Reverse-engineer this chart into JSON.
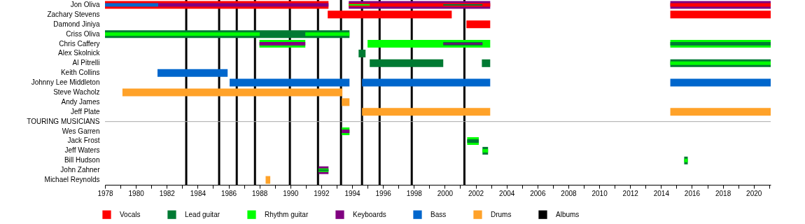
{
  "chart_data": {
    "type": "bar",
    "orientation": "horizontal",
    "legend": "bottom",
    "grid": false,
    "categories": [
      "Jon Oliva",
      "Zachary Stevens",
      "Damond Jiniya",
      "Criss Oliva",
      "Chris Caffery",
      "Alex Skolnick",
      "Al Pitrelli",
      "Keith Collins",
      "Johnny Lee Middleton",
      "Steve Wacholz",
      "Andy James",
      "Jeff Plate",
      "TOURING MUSICIANS",
      "Wes Garren",
      "Jack Frost",
      "Jeff Waters",
      "Bill Hudson",
      "John Zahner",
      "Michael Reynolds"
    ],
    "xlim": [
      1978,
      2021.1
    ],
    "xticks": [
      1978,
      {
        "value": 1979,
        "label": null
      },
      1980,
      {
        "value": 1981,
        "label": null
      },
      1982,
      {
        "value": 1983,
        "label": null
      },
      1984,
      {
        "value": 1985,
        "label": null
      },
      1986,
      {
        "value": 1987,
        "label": null
      },
      1988,
      {
        "value": 1989,
        "label": null
      },
      1990,
      {
        "value": 1991,
        "label": null
      },
      1992,
      {
        "value": 1993,
        "label": null
      },
      1994,
      {
        "value": 1995,
        "label": null
      },
      1996,
      {
        "value": 1997,
        "label": null
      },
      1998,
      {
        "value": 1999,
        "label": null
      },
      2000,
      {
        "value": 2001,
        "label": null
      },
      2002,
      {
        "value": 2003,
        "label": null
      },
      2004,
      {
        "value": 2005,
        "label": null
      },
      2006,
      {
        "value": 2007,
        "label": null
      },
      2008,
      {
        "value": 2009,
        "label": null
      },
      2010,
      {
        "value": 2011,
        "label": null
      },
      2012,
      {
        "value": 2013,
        "label": null
      },
      2014,
      {
        "value": 2015,
        "label": null
      },
      2016,
      {
        "value": 2017,
        "label": null
      },
      2018,
      {
        "value": 2019,
        "label": null
      },
      2020,
      {
        "value": 2021,
        "label": null
      }
    ],
    "series": [
      {
        "name": "Vocals",
        "color": "#ff0000",
        "values": [
          14.47,
          8.03,
          1.54,
          null,
          null,
          null,
          null,
          null,
          null,
          null,
          null,
          null,
          null,
          null,
          null,
          null,
          null,
          null,
          null
        ],
        "base": [
          1978,
          1992.42,
          2001.4,
          null,
          null,
          null,
          null,
          null,
          null,
          null,
          null,
          null,
          null,
          null,
          null,
          null,
          null,
          null,
          null
        ]
      },
      {
        "name": "Lead guitar",
        "color": "#007a33",
        "values": [
          null,
          null,
          null,
          15.83,
          null,
          0.45,
          4.76,
          null,
          null,
          null,
          null,
          null,
          null,
          null,
          null,
          0.36,
          0.23,
          null,
          null
        ],
        "base": [
          null,
          null,
          null,
          1978,
          null,
          1994.42,
          1995.14,
          null,
          null,
          null,
          null,
          null,
          null,
          null,
          null,
          2002.44,
          2015.5,
          null,
          null
        ]
      },
      {
        "name": "Rhythm guitar",
        "color": "#00ff00",
        "values": [
          null,
          null,
          null,
          null,
          2.97,
          null,
          null,
          null,
          null,
          null,
          null,
          null,
          null,
          0.5,
          0.75,
          null,
          null,
          null,
          null
        ],
        "base": [
          null,
          null,
          null,
          null,
          1988.0,
          null,
          null,
          null,
          null,
          null,
          null,
          null,
          null,
          1993.33,
          2001.45,
          null,
          null,
          null,
          null
        ]
      },
      {
        "name": "Keyboards",
        "color": "#800080",
        "values": [
          9.16,
          null,
          null,
          null,
          null,
          null,
          null,
          null,
          null,
          null,
          null,
          null,
          null,
          null,
          null,
          null,
          null,
          0.64,
          null
        ],
        "base": [
          1993.78,
          null,
          null,
          null,
          null,
          null,
          null,
          null,
          null,
          null,
          null,
          null,
          null,
          null,
          null,
          null,
          null,
          1991.83,
          null
        ]
      },
      {
        "name": "Bass",
        "color": "#0066cc",
        "values": [
          null,
          null,
          null,
          null,
          null,
          null,
          null,
          4.54,
          7.76,
          null,
          null,
          null,
          null,
          null,
          null,
          null,
          null,
          null,
          null
        ],
        "base": [
          null,
          null,
          null,
          null,
          null,
          null,
          null,
          1981.4,
          1986.07,
          null,
          null,
          null,
          null,
          null,
          null,
          null,
          null,
          null,
          null
        ]
      },
      {
        "name": "Drums",
        "color": "#ffa229",
        "values": [
          null,
          null,
          null,
          null,
          null,
          null,
          null,
          null,
          null,
          14.24,
          0.5,
          8.3,
          null,
          null,
          null,
          null,
          null,
          null,
          0.3
        ],
        "base": [
          null,
          null,
          null,
          null,
          null,
          null,
          null,
          null,
          null,
          1979.13,
          1993.33,
          1994.64,
          null,
          null,
          null,
          null,
          null,
          null,
          1988.4
        ]
      },
      {
        "color": "#0066cc",
        "values": [
          null,
          null,
          null,
          null,
          null,
          null,
          null,
          null,
          8.3,
          null,
          null,
          null,
          null,
          null,
          null,
          null,
          null,
          null,
          null
        ],
        "base": [
          null,
          null,
          null,
          null,
          null,
          null,
          null,
          null,
          1994.64,
          null,
          null,
          null,
          null,
          null,
          null,
          null,
          null,
          null,
          null
        ]
      },
      {
        "color": "#ffa229",
        "values": [
          null,
          null,
          null,
          null,
          null,
          null,
          null,
          null,
          null,
          null,
          null,
          6.5,
          null,
          null,
          null,
          null,
          null,
          null,
          null
        ],
        "base": [
          null,
          null,
          null,
          null,
          null,
          null,
          null,
          null,
          null,
          null,
          null,
          2014.6,
          null,
          null,
          null,
          null,
          null,
          null,
          null
        ]
      },
      {
        "color": "#0066cc",
        "values": [
          null,
          null,
          null,
          null,
          null,
          null,
          null,
          null,
          6.5,
          null,
          null,
          null,
          null,
          null,
          null,
          null,
          null,
          null,
          null
        ],
        "base": [
          null,
          null,
          null,
          null,
          null,
          null,
          null,
          null,
          2014.6,
          null,
          null,
          null,
          null,
          null,
          null,
          null,
          null,
          null,
          null
        ]
      },
      {
        "color": "#800080",
        "values": [
          6.5,
          null,
          null,
          null,
          null,
          null,
          null,
          null,
          null,
          null,
          null,
          null,
          null,
          null,
          null,
          null,
          null,
          null,
          null
        ],
        "base": [
          2014.6,
          null,
          null,
          null,
          null,
          null,
          null,
          null,
          null,
          null,
          null,
          null,
          null,
          null,
          null,
          null,
          null,
          null,
          null
        ]
      },
      {
        "color": "#ff0000",
        "values": [
          null,
          6.5,
          null,
          null,
          null,
          null,
          null,
          null,
          null,
          null,
          null,
          null,
          null,
          null,
          null,
          null,
          null,
          null,
          null
        ],
        "base": [
          null,
          2014.6,
          null,
          null,
          null,
          null,
          null,
          null,
          null,
          null,
          null,
          null,
          null,
          null,
          null,
          null,
          null,
          null,
          null
        ]
      },
      {
        "color": "#00ff00",
        "values": [
          null,
          null,
          null,
          null,
          7.94,
          null,
          null,
          null,
          null,
          null,
          null,
          null,
          null,
          null,
          null,
          null,
          null,
          null,
          null
        ],
        "base": [
          null,
          null,
          null,
          null,
          1995.0,
          null,
          null,
          null,
          null,
          null,
          null,
          null,
          null,
          null,
          null,
          null,
          null,
          null,
          null
        ]
      },
      {
        "color": "#007a33",
        "values": [
          null,
          null,
          null,
          null,
          null,
          null,
          0.54,
          null,
          null,
          null,
          null,
          null,
          null,
          null,
          null,
          null,
          null,
          null,
          null
        ],
        "base": [
          null,
          null,
          null,
          null,
          null,
          null,
          2002.4,
          null,
          null,
          null,
          null,
          null,
          null,
          null,
          null,
          null,
          null,
          null,
          null
        ]
      },
      {
        "color": "#007a33",
        "values": [
          null,
          null,
          null,
          null,
          null,
          null,
          6.5,
          null,
          null,
          null,
          null,
          null,
          null,
          null,
          null,
          null,
          null,
          null,
          null
        ],
        "base": [
          null,
          null,
          null,
          null,
          null,
          null,
          2014.6,
          null,
          null,
          null,
          null,
          null,
          null,
          null,
          null,
          null,
          null,
          null,
          null
        ]
      },
      {
        "color": "#00ff00",
        "values": [
          null,
          null,
          null,
          null,
          6.5,
          null,
          null,
          null,
          null,
          null,
          null,
          null,
          null,
          null,
          null,
          null,
          null,
          null,
          null
        ],
        "base": [
          null,
          null,
          null,
          null,
          2014.6,
          null,
          null,
          null,
          null,
          null,
          null,
          null,
          null,
          null,
          null,
          null,
          null,
          null,
          null
        ]
      },
      {
        "color": "#0066cc",
        "values": [
          3.45,
          null,
          null,
          null,
          null,
          null,
          null,
          null,
          null,
          null,
          null,
          null,
          null,
          null,
          null,
          null,
          null,
          null,
          null
        ],
        "base": [
          1978,
          null,
          null,
          null,
          null,
          null,
          null,
          null,
          null,
          null,
          null,
          null,
          null,
          null,
          null,
          null,
          null,
          null,
          null
        ]
      },
      {
        "color": "#800080",
        "values": [
          11.02,
          null,
          null,
          null,
          2.97,
          null,
          null,
          null,
          null,
          null,
          null,
          null,
          null,
          null,
          null,
          null,
          null,
          null,
          null
        ],
        "base": [
          1981.45,
          null,
          null,
          null,
          1988.0,
          null,
          null,
          null,
          null,
          null,
          null,
          null,
          null,
          null,
          null,
          null,
          null,
          null,
          null
        ]
      },
      {
        "color": "#ff0000",
        "values": [
          9.16,
          null,
          null,
          null,
          null,
          null,
          null,
          null,
          null,
          null,
          null,
          null,
          null,
          null,
          null,
          null,
          null,
          null,
          null
        ],
        "base": [
          1993.78,
          null,
          null,
          null,
          null,
          null,
          null,
          null,
          null,
          null,
          null,
          null,
          null,
          null,
          null,
          null,
          null,
          null,
          null
        ]
      },
      {
        "color": "#ff0000",
        "values": [
          6.5,
          null,
          null,
          null,
          null,
          null,
          null,
          null,
          null,
          null,
          null,
          null,
          null,
          null,
          null,
          null,
          null,
          null,
          null
        ],
        "base": [
          2014.6,
          null,
          null,
          null,
          null,
          null,
          null,
          null,
          null,
          null,
          null,
          null,
          null,
          null,
          null,
          null,
          null,
          null,
          null
        ]
      },
      {
        "color": "#00ff00",
        "values": [
          null,
          null,
          null,
          10.02,
          null,
          null,
          null,
          null,
          null,
          null,
          null,
          null,
          null,
          null,
          null,
          null,
          null,
          null,
          null
        ],
        "base": [
          null,
          null,
          null,
          1978,
          null,
          null,
          null,
          null,
          null,
          null,
          null,
          null,
          null,
          null,
          null,
          null,
          null,
          null,
          null
        ]
      },
      {
        "color": "#00ff00",
        "values": [
          null,
          null,
          null,
          2.86,
          null,
          null,
          6.5,
          null,
          null,
          null,
          null,
          null,
          null,
          null,
          null,
          0.36,
          0.23,
          0.64,
          null
        ],
        "base": [
          null,
          null,
          null,
          1990.97,
          null,
          null,
          2014.6,
          null,
          null,
          null,
          null,
          null,
          null,
          null,
          null,
          2002.44,
          2015.5,
          1991.83,
          null
        ]
      },
      {
        "color": "#007a33",
        "values": [
          null,
          null,
          null,
          null,
          2.54,
          null,
          null,
          null,
          null,
          null,
          null,
          null,
          null,
          null,
          0.75,
          null,
          null,
          null,
          null
        ],
        "base": [
          null,
          null,
          null,
          null,
          1999.9,
          null,
          null,
          null,
          null,
          null,
          null,
          null,
          null,
          null,
          2001.45,
          null,
          null,
          null,
          null
        ]
      },
      {
        "color": "#800080",
        "values": [
          null,
          null,
          null,
          null,
          null,
          null,
          null,
          null,
          null,
          null,
          null,
          null,
          null,
          0.5,
          null,
          null,
          null,
          null,
          null
        ],
        "base": [
          null,
          null,
          null,
          null,
          null,
          null,
          null,
          null,
          null,
          null,
          null,
          null,
          null,
          1993.33,
          null,
          null,
          null,
          null,
          null
        ]
      },
      {
        "color": "#007a33",
        "values": [
          null,
          null,
          null,
          null,
          6.5,
          null,
          null,
          null,
          null,
          null,
          null,
          null,
          null,
          null,
          null,
          null,
          null,
          null,
          null
        ],
        "base": [
          null,
          null,
          null,
          null,
          2014.6,
          null,
          null,
          null,
          null,
          null,
          null,
          null,
          null,
          null,
          null,
          null,
          null,
          null,
          null
        ]
      },
      {
        "color": "#00ff00",
        "values": [
          1.36,
          null,
          null,
          null,
          null,
          null,
          null,
          null,
          null,
          null,
          null,
          null,
          null,
          null,
          null,
          null,
          null,
          null,
          null
        ],
        "base": [
          1993.78,
          null,
          null,
          null,
          null,
          null,
          null,
          null,
          null,
          null,
          null,
          null,
          null,
          null,
          null,
          null,
          null,
          null,
          null
        ]
      },
      {
        "color": "#007a33",
        "values": [
          2.54,
          null,
          null,
          null,
          null,
          null,
          null,
          null,
          null,
          null,
          null,
          null,
          null,
          null,
          null,
          null,
          null,
          null,
          null
        ],
        "base": [
          1999.9,
          null,
          null,
          null,
          null,
          null,
          null,
          null,
          null,
          null,
          null,
          null,
          null,
          null,
          null,
          null,
          null,
          null,
          null
        ]
      },
      {
        "color": "#800080",
        "values": [
          null,
          null,
          null,
          null,
          2.54,
          null,
          null,
          null,
          null,
          null,
          null,
          null,
          null,
          null,
          null,
          null,
          null,
          null,
          null
        ],
        "base": [
          null,
          null,
          null,
          null,
          1999.9,
          null,
          null,
          null,
          null,
          null,
          null,
          null,
          null,
          null,
          null,
          null,
          null,
          null,
          null
        ]
      },
      {
        "color": "#007a33",
        "values": [
          null,
          null,
          null,
          null,
          null,
          null,
          null,
          null,
          null,
          null,
          null,
          null,
          null,
          null,
          null,
          null,
          null,
          0.64,
          null
        ],
        "base": [
          null,
          null,
          null,
          null,
          null,
          null,
          null,
          null,
          null,
          null,
          null,
          null,
          null,
          null,
          null,
          null,
          null,
          1991.83,
          null
        ]
      }
    ],
    "ref_lines": [
      {
        "axis": "x",
        "value": 1983.26,
        "label": "Albums",
        "color": "#000000"
      },
      {
        "axis": "x",
        "value": 1985.39,
        "color": "#000000"
      },
      {
        "axis": "x",
        "value": 1986.53,
        "color": "#000000"
      },
      {
        "axis": "x",
        "value": 1987.71,
        "color": "#000000"
      },
      {
        "axis": "x",
        "value": 1989.97,
        "color": "#000000"
      },
      {
        "axis": "x",
        "value": 1991.79,
        "color": "#000000"
      },
      {
        "axis": "x",
        "value": 1993.28,
        "color": "#000000"
      },
      {
        "axis": "x",
        "value": 1994.64,
        "color": "#000000"
      },
      {
        "axis": "x",
        "value": 1995.78,
        "color": "#000000"
      },
      {
        "axis": "x",
        "value": 1997.86,
        "color": "#000000"
      },
      {
        "axis": "x",
        "value": 2001.27,
        "color": "#000000"
      },
      {
        "axis": "y",
        "value": "TOURING MUSICIANS",
        "color": "#aaaaaa"
      }
    ]
  }
}
